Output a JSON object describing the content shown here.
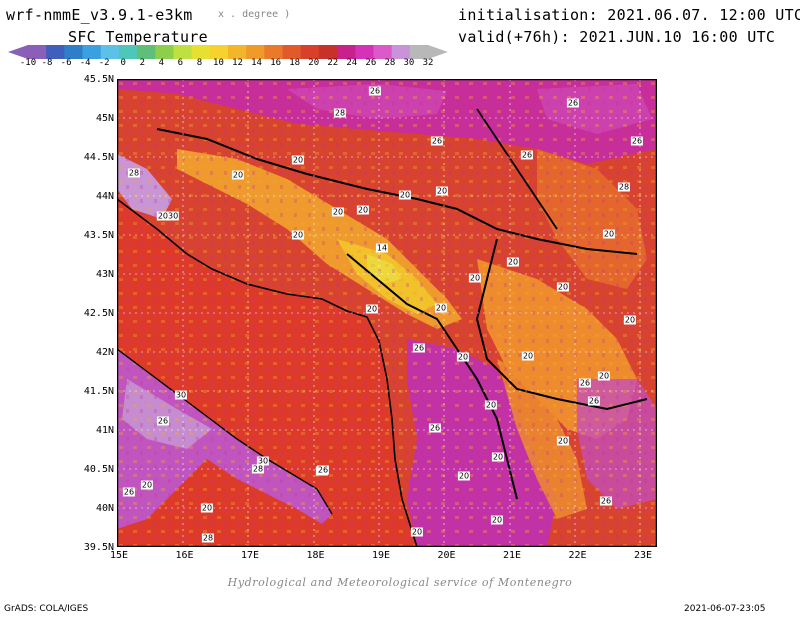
{
  "header": {
    "model_title": "wrf-nmmE_v3.9.1-e3km",
    "unit_hint": "x . degree )",
    "variable_title": "SFC Temperature",
    "init_line": "initialisation: 2021.06.07. 12:00 UTC",
    "valid_line": "valid(+76h): 2021.JUN.10 16:00 UTC"
  },
  "colorbar": {
    "ticks": [
      "-10",
      "-8",
      "-6",
      "-4",
      "-2",
      "0",
      "2",
      "4",
      "6",
      "8",
      "10",
      "12",
      "14",
      "16",
      "18",
      "20",
      "22",
      "24",
      "26",
      "28",
      "30",
      "32"
    ],
    "colors": [
      "#8a5fb8",
      "#3f5fbd",
      "#2f7fc8",
      "#3aa0e0",
      "#5cc0e8",
      "#4fc7b8",
      "#5fbf7a",
      "#8ccf4a",
      "#bfe040",
      "#e8e030",
      "#f5d22e",
      "#f3b52c",
      "#f09a2a",
      "#ea7a2a",
      "#e35a2a",
      "#d8402a",
      "#c8302a",
      "#c8208c",
      "#d532b8",
      "#db5ac8",
      "#c893d8",
      "#b8b8b8"
    ]
  },
  "map": {
    "lat_labels": [
      "45.5N",
      "45N",
      "44.5N",
      "44N",
      "43.5N",
      "43N",
      "42.5N",
      "42N",
      "41.5N",
      "41N",
      "40.5N",
      "40N",
      "39.5N"
    ],
    "lon_labels": [
      "15E",
      "16E",
      "17E",
      "18E",
      "19E",
      "20E",
      "21E",
      "22E",
      "23E"
    ],
    "contour_labels": [
      {
        "t": "26"
      },
      {
        "t": "28"
      },
      {
        "t": "26"
      },
      {
        "t": "26"
      },
      {
        "t": "26"
      },
      {
        "t": "26"
      },
      {
        "t": "20"
      },
      {
        "t": "20"
      },
      {
        "t": "28"
      },
      {
        "t": "20"
      },
      {
        "t": "20"
      },
      {
        "t": "20"
      },
      {
        "t": "2030"
      },
      {
        "t": "20"
      },
      {
        "t": "14"
      },
      {
        "t": "20"
      },
      {
        "t": "20"
      },
      {
        "t": "20"
      },
      {
        "t": "20"
      },
      {
        "t": "20"
      },
      {
        "t": "20"
      },
      {
        "t": "26"
      },
      {
        "t": "20"
      },
      {
        "t": "20"
      },
      {
        "t": "30"
      },
      {
        "t": "26"
      },
      {
        "t": "26"
      },
      {
        "t": "20"
      },
      {
        "t": "26"
      },
      {
        "t": "20"
      },
      {
        "t": "30"
      },
      {
        "t": "26"
      },
      {
        "t": "20"
      },
      {
        "t": "26"
      },
      {
        "t": "20"
      },
      {
        "t": "28"
      },
      {
        "t": "20"
      },
      {
        "t": "20"
      },
      {
        "t": "26"
      },
      {
        "t": "28"
      },
      {
        "t": "26"
      },
      {
        "t": "20"
      },
      {
        "t": "20"
      },
      {
        "t": "20"
      },
      {
        "t": "26"
      },
      {
        "t": "20"
      },
      {
        "t": "20"
      },
      {
        "t": "28"
      }
    ]
  },
  "footer": {
    "credit": "Hydrological and Meteorological service of Montenegro",
    "grads_label": "GrADS: COLA/IGES",
    "timestamp": "2021-06-07-23:05"
  }
}
